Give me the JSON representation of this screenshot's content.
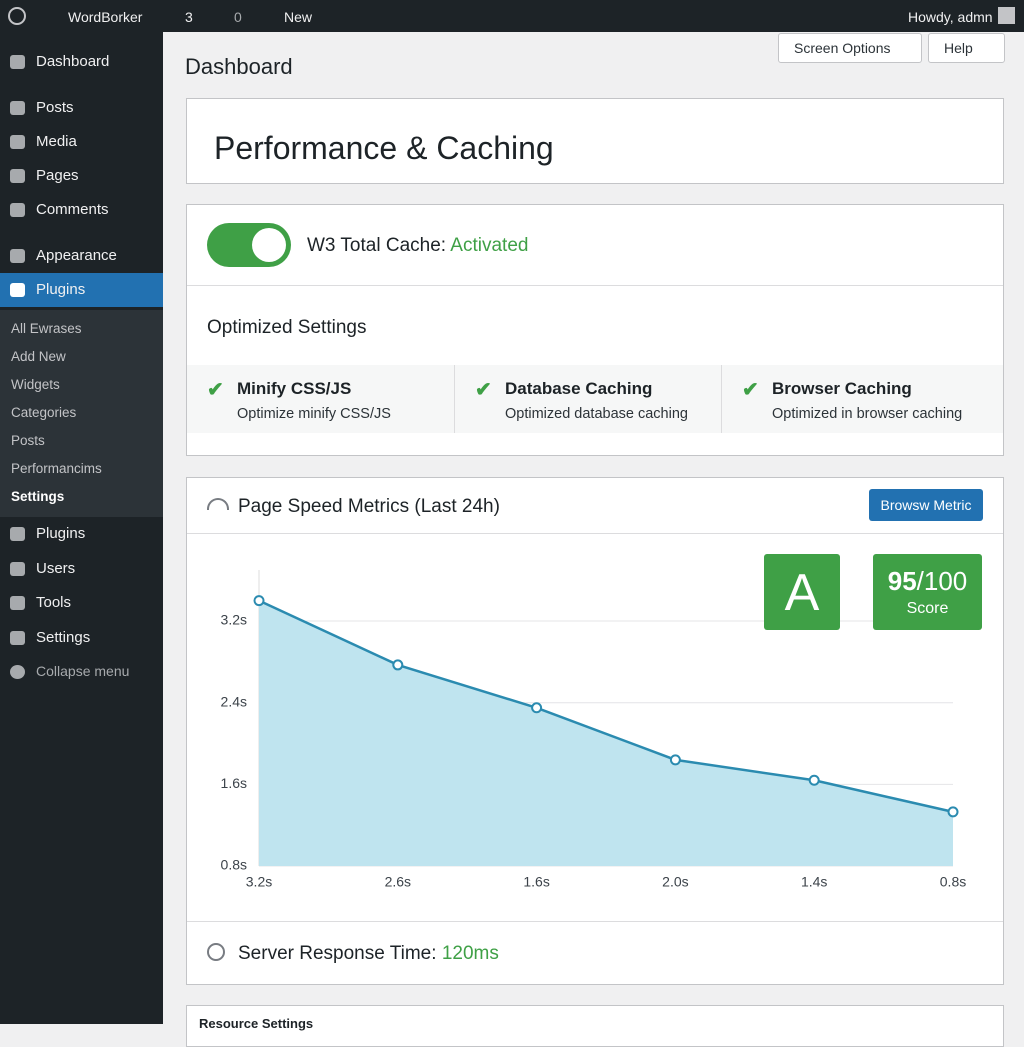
{
  "admin_bar": {
    "site": "WordBorker",
    "updates": "3",
    "comments": "0",
    "new": "New",
    "greeting": "Howdy, admn"
  },
  "menu": {
    "top": [
      "Dashboard",
      "Posts",
      "Media",
      "Pages",
      "Comments",
      "Appearance",
      "Plugins"
    ],
    "submenu": [
      "All Ewrases",
      "Add New",
      "Widgets",
      "Categories",
      "Posts",
      "Performancims",
      "Settings"
    ],
    "bottom": [
      "Plugins",
      "Users",
      "Tools",
      "Settings",
      "Collapse menu"
    ]
  },
  "screen_options": "Screen Options",
  "help": "Help",
  "page_title": "Dashboard",
  "card_title": "Performance & Caching",
  "cache": {
    "label": "W3 Total Cache:",
    "status": "Activated"
  },
  "optimized": {
    "title": "Optimized Settings",
    "features": [
      {
        "title": "Minify CSS/JS",
        "desc": "Optimize minify CSS/JS"
      },
      {
        "title": "Database Caching",
        "desc": "Optimized database caching"
      },
      {
        "title": "Browser Caching",
        "desc": "Optimized in browser caching"
      }
    ]
  },
  "metrics": {
    "button": "Browsw Metric",
    "grade": "A",
    "score": "95",
    "score_max": "/100",
    "score_label": "Score",
    "response_label": "Server Response Time:",
    "response_value": "120ms"
  },
  "chart_data": {
    "type": "area",
    "title": "Page Speed Metrics (Last 24h)",
    "categories": [
      "3.2s",
      "2.6s",
      "1.6s",
      "2.0s",
      "1.4s",
      "0.8s"
    ],
    "values": [
      3.4,
      2.77,
      2.35,
      1.84,
      1.64,
      1.33
    ],
    "color": "#2b8bb0",
    "fill": "#bfe4ef",
    "ylim": [
      0.8,
      3.7
    ],
    "yticks": [
      {
        "value": 0.8,
        "label": "0.8s"
      },
      {
        "value": 1.6,
        "label": "1.6s"
      },
      {
        "value": 2.4,
        "label": "2.4s"
      },
      {
        "value": 3.2,
        "label": "3.2s"
      }
    ],
    "grid": true
  },
  "resource_title": "Resource Settings"
}
